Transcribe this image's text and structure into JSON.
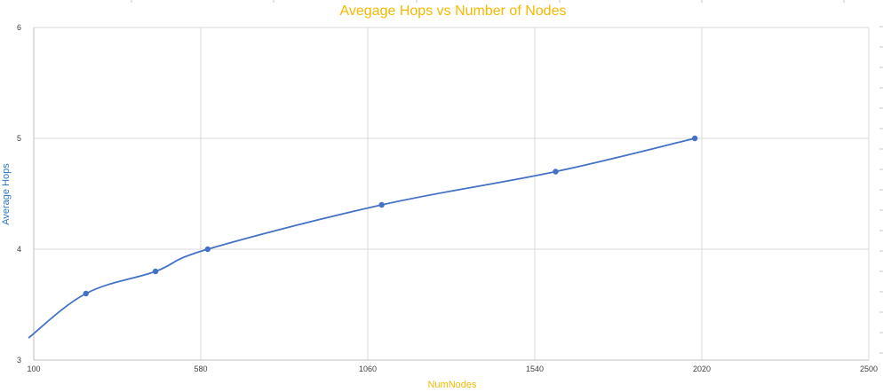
{
  "chart_data": {
    "type": "line",
    "title": "Avegage Hops vs Number of Nodes",
    "xlabel": "NumNodes",
    "ylabel": "Average Hops",
    "xlim": [
      100,
      2500
    ],
    "ylim": [
      3,
      6
    ],
    "x_ticks": [
      100,
      580,
      1060,
      1540,
      2020,
      2500
    ],
    "y_ticks": [
      3,
      4,
      5,
      6
    ],
    "x_tick_labels": [
      "100",
      "580",
      "1060",
      "1540",
      "2020",
      "2500"
    ],
    "y_tick_labels": [
      "3",
      "4",
      "5",
      "6"
    ],
    "grid": true,
    "series": [
      {
        "x": [
          250,
          450,
          600,
          1100,
          1600,
          2000
        ],
        "y": [
          3.6,
          3.8,
          4.0,
          4.4,
          4.7,
          5.0
        ],
        "color": "#4472c4",
        "smooth": true,
        "trend_start": {
          "x": 85,
          "y": 3.2
        }
      }
    ],
    "colors": {
      "title": "#f5b800",
      "xlabel": "#f5b800",
      "ylabel": "#2f77c2",
      "grid": "#d9d9d9",
      "axis": "#bfbfbf"
    }
  }
}
